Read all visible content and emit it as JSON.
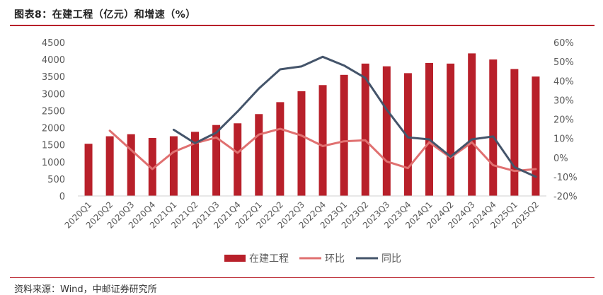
{
  "header": {
    "title": "图表8：在建工程（亿元）和增速（%）"
  },
  "footer": {
    "source": "资料来源：Wind，中邮证券研究所"
  },
  "chart_data": {
    "type": "bar",
    "categories": [
      "2020Q1",
      "2020Q2",
      "2020Q3",
      "2020Q4",
      "2021Q1",
      "2021Q2",
      "2021Q3",
      "2021Q4",
      "2022Q1",
      "2022Q2",
      "2022Q3",
      "2022Q4",
      "2023Q1",
      "2023Q2",
      "2023Q3",
      "2023Q4",
      "2024Q1",
      "2024Q2",
      "2024Q3",
      "2024Q4",
      "2025Q1",
      "2025Q2"
    ],
    "series": [
      {
        "name": "在建工程",
        "type": "bar",
        "axis": "left",
        "color": "#b8202a",
        "values": [
          1530,
          1750,
          1810,
          1700,
          1750,
          1880,
          2080,
          2130,
          2400,
          2750,
          3070,
          3250,
          3550,
          3880,
          3800,
          3600,
          3900,
          3880,
          4180,
          4000,
          3720,
          3500
        ]
      },
      {
        "name": "环比",
        "type": "line",
        "axis": "right",
        "color": "#e07070",
        "values": [
          null,
          14,
          4,
          -6,
          3,
          7.5,
          10.5,
          2.5,
          12,
          15,
          11.5,
          6,
          8.5,
          9,
          -2,
          -5.5,
          8,
          0,
          8,
          -4,
          -7,
          -6
        ]
      },
      {
        "name": "同比",
        "type": "line",
        "axis": "right",
        "color": "#44546a",
        "values": [
          null,
          null,
          null,
          null,
          14.5,
          7.5,
          13,
          24,
          36,
          46,
          47.5,
          52.5,
          48,
          41.5,
          25,
          10.5,
          9.5,
          0.5,
          9.5,
          11,
          -5,
          -10
        ]
      }
    ],
    "y_left": {
      "min": 0,
      "max": 4500,
      "ticks": [
        0,
        500,
        1000,
        1500,
        2000,
        2500,
        3000,
        3500,
        4000,
        4500
      ]
    },
    "y_right": {
      "min": -20,
      "max": 60,
      "ticks": [
        "-20%",
        "-10%",
        "0%",
        "10%",
        "20%",
        "30%",
        "40%",
        "50%",
        "60%"
      ]
    },
    "grid": false,
    "legend": "bottom"
  }
}
